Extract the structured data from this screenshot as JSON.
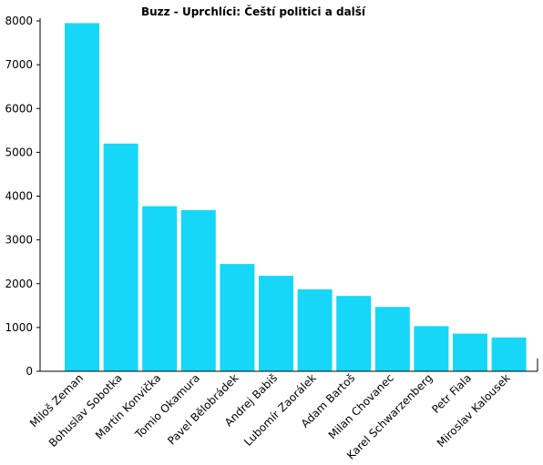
{
  "colors": {
    "bar": "#16d7f7",
    "axis": "#000000",
    "text": "#000000",
    "background": "#ffffff"
  },
  "chart_data": {
    "type": "bar",
    "title": "Buzz - Uprchlíci: Čeští politici a další",
    "xlabel": "",
    "ylabel": "",
    "ylim": [
      0,
      8000
    ],
    "yticks": [
      0,
      1000,
      2000,
      3000,
      4000,
      5000,
      6000,
      7000,
      8000
    ],
    "grid": false,
    "legend": "none",
    "categories": [
      "Miloš Zeman",
      "Bohuslav Sobotka",
      "Martin Konvička",
      "Tomio Okamura",
      "Pavel Bělobrádek",
      "Andrej Babiš",
      "Lubomír Zaorálek",
      "Adam Bartoš",
      "Milan Chovanec",
      "Karel Schwarzenberg",
      "Petr Fiala",
      "Miroslav Kalousek"
    ],
    "series": [
      {
        "values": [
          7950,
          5200,
          3770,
          3680,
          2450,
          2180,
          1870,
          1720,
          1470,
          1030,
          860,
          770
        ]
      }
    ]
  }
}
